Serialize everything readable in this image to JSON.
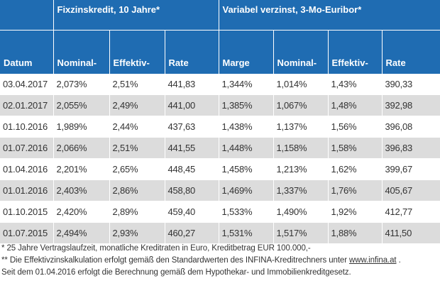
{
  "table": {
    "group_headers": [
      "Fixzinskredit, 10 Jahre*",
      "Variabel verzinst, 3-Mo-Euribor*"
    ],
    "columns": [
      "Datum",
      "Nominal-",
      "Effektiv-",
      "Rate",
      "Marge",
      "Nominal-",
      "Effektiv-",
      "Rate"
    ],
    "rows": [
      [
        "03.04.2017",
        "2,073%",
        "2,51%",
        "441,83",
        "1,344%",
        "1,014%",
        "1,43%",
        "390,33"
      ],
      [
        "02.01.2017",
        "2,055%",
        "2,49%",
        "441,00",
        "1,385%",
        "1,067%",
        "1,48%",
        "392,98"
      ],
      [
        "01.10.2016",
        "1,989%",
        "2,44%",
        "437,63",
        "1,438%",
        "1,137%",
        "1,56%",
        "396,08"
      ],
      [
        "01.07.2016",
        "2,066%",
        "2,51%",
        "441,55",
        "1,448%",
        "1,158%",
        "1,58%",
        "396,83"
      ],
      [
        "01.04.2016",
        "2,201%",
        "2,65%",
        "448,45",
        "1,458%",
        "1,213%",
        "1,62%",
        "399,67"
      ],
      [
        "01.01.2016",
        "2,403%",
        "2,86%",
        "458,80",
        "1,469%",
        "1,337%",
        "1,76%",
        "405,67"
      ],
      [
        "01.10.2015",
        "2,420%",
        "2,89%",
        "459,40",
        "1,533%",
        "1,490%",
        "1,92%",
        "412,77"
      ],
      [
        "01.07.2015",
        "2,494%",
        "2,93%",
        "460,27",
        "1,531%",
        "1,517%",
        "1,88%",
        "411,50"
      ]
    ]
  },
  "notes": {
    "note1": "*  25 Jahre Vertragslaufzeit, monatliche Kreditraten in Euro, Kreditbetrag EUR 100.000,-",
    "note2_prefix": "** Die Effektivzinskalkulation erfolgt gemäß den Standardwerten des INFINA-Kreditrechners unter ",
    "note2_link": "www.infina.at",
    "note2_suffix": " .",
    "note3": "Seit dem 01.04.2016 erfolgt die Berechnung gemäß dem Hypothekar- und Immobilienkreditgesetz."
  }
}
